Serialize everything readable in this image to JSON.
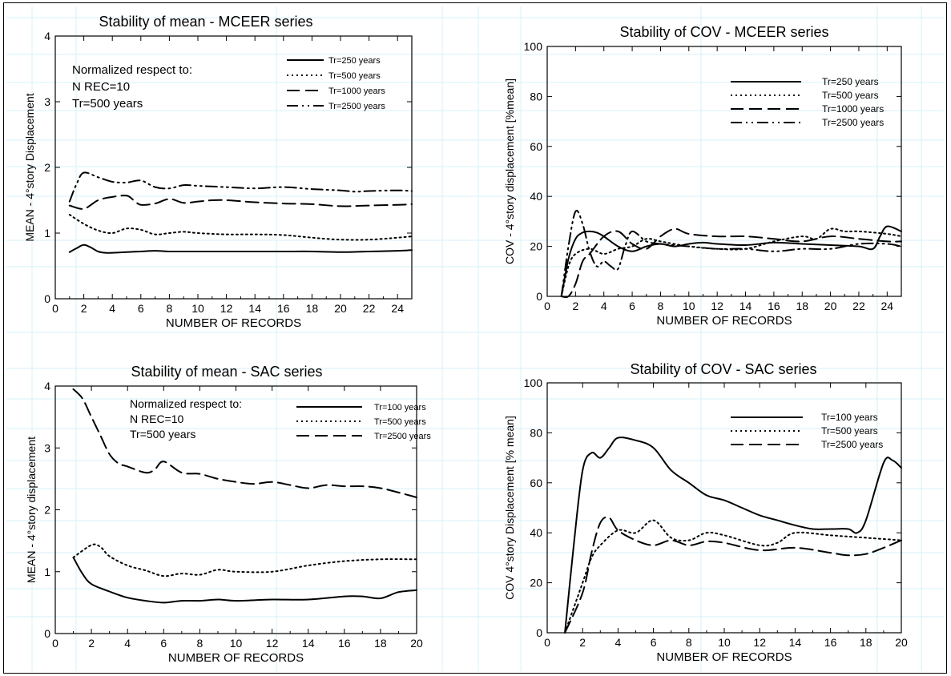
{
  "chart_data": [
    {
      "type": "line",
      "title": "Stability of mean -  MCEER series",
      "xlabel": "NUMBER OF RECORDS",
      "ylabel": "MEAN - 4°story Displacement",
      "xlim": [
        0,
        25
      ],
      "ylim": [
        0,
        4
      ],
      "xticks": [
        0,
        2,
        4,
        6,
        8,
        10,
        12,
        14,
        16,
        18,
        20,
        22,
        24
      ],
      "yticks": [
        0,
        1,
        2,
        3,
        4
      ],
      "legend_position": "top-right",
      "annotation": [
        "Normalized respect to:",
        "N REC=10",
        "Tr=500 years"
      ],
      "series": [
        {
          "name": "Tr=250 years",
          "style": "solid",
          "x": [
            1,
            1.5,
            2,
            2.5,
            3,
            3.5,
            4,
            5,
            6,
            7,
            8,
            9,
            10,
            12,
            14,
            16,
            18,
            20,
            22,
            24,
            25
          ],
          "y": [
            0.71,
            0.77,
            0.82,
            0.78,
            0.72,
            0.7,
            0.7,
            0.71,
            0.72,
            0.73,
            0.72,
            0.72,
            0.72,
            0.72,
            0.72,
            0.72,
            0.72,
            0.71,
            0.72,
            0.73,
            0.74
          ]
        },
        {
          "name": "Tr=500 years",
          "style": "dotted",
          "x": [
            1,
            2,
            3,
            4,
            5,
            6,
            7,
            8,
            9,
            10,
            12,
            14,
            16,
            18,
            20,
            22,
            24,
            25
          ],
          "y": [
            1.28,
            1.14,
            1.04,
            1.0,
            1.07,
            1.05,
            0.98,
            1.0,
            1.02,
            1.0,
            0.98,
            0.98,
            0.97,
            0.93,
            0.9,
            0.9,
            0.93,
            0.95
          ]
        },
        {
          "name": "Tr=1000 years",
          "style": "dashed",
          "x": [
            1,
            2,
            3,
            4,
            5,
            5.5,
            6,
            7,
            8,
            9,
            10,
            11,
            12,
            14,
            16,
            18,
            20,
            22,
            24,
            25
          ],
          "y": [
            1.42,
            1.37,
            1.5,
            1.55,
            1.57,
            1.5,
            1.43,
            1.45,
            1.52,
            1.46,
            1.48,
            1.5,
            1.5,
            1.47,
            1.45,
            1.44,
            1.41,
            1.42,
            1.43,
            1.44
          ]
        },
        {
          "name": "Tr=2500 years",
          "style": "dashdotdot",
          "x": [
            1,
            1.5,
            2,
            3,
            4,
            5,
            6,
            7,
            8,
            9,
            10,
            12,
            14,
            16,
            18,
            20,
            21,
            22,
            24,
            25
          ],
          "y": [
            1.48,
            1.75,
            1.92,
            1.85,
            1.78,
            1.77,
            1.8,
            1.7,
            1.68,
            1.73,
            1.72,
            1.7,
            1.68,
            1.7,
            1.67,
            1.65,
            1.63,
            1.64,
            1.65,
            1.64
          ]
        }
      ]
    },
    {
      "type": "line",
      "title": "Stability of COV - MCEER series",
      "xlabel": "NUMBER OF RECORDS",
      "ylabel": "COV  - 4°story displacement [%mean]",
      "xlim": [
        0,
        25
      ],
      "ylim": [
        0,
        100
      ],
      "xticks": [
        0,
        2,
        4,
        6,
        8,
        10,
        12,
        14,
        16,
        18,
        20,
        22,
        24
      ],
      "yticks": [
        0,
        20,
        40,
        60,
        80,
        100
      ],
      "legend_position": "top-right",
      "series": [
        {
          "name": "Tr=250 years",
          "style": "solid",
          "x": [
            1,
            1.5,
            2,
            2.5,
            3,
            3.5,
            4,
            5,
            6,
            7,
            8,
            9,
            10,
            11,
            12,
            14,
            16,
            18,
            20,
            22,
            23,
            23.5,
            24,
            25
          ],
          "y": [
            0,
            15,
            23,
            25.5,
            26,
            25.5,
            24,
            20,
            18,
            20,
            21,
            20,
            21,
            21.5,
            21,
            20.5,
            21.5,
            21,
            20.5,
            20,
            19,
            24,
            28,
            26
          ]
        },
        {
          "name": "Tr=500 years",
          "style": "dotted",
          "x": [
            1,
            1.5,
            2,
            3,
            4,
            5,
            6,
            7,
            8,
            10,
            12,
            14,
            16,
            18,
            19,
            20,
            21,
            22,
            24,
            25
          ],
          "y": [
            0,
            12,
            17,
            19,
            17,
            19,
            20,
            23,
            22,
            20,
            19,
            19,
            22,
            24,
            23,
            27,
            26,
            26,
            25,
            24
          ]
        },
        {
          "name": "Tr=1000 years",
          "style": "dashed",
          "x": [
            1,
            1.5,
            2,
            2.5,
            3,
            4,
            5,
            6,
            7,
            8,
            9,
            10,
            12,
            14,
            16,
            18,
            20,
            22,
            24,
            25
          ],
          "y": [
            0,
            0,
            5,
            14,
            17,
            24,
            26,
            21,
            19,
            24,
            27,
            25,
            24,
            24,
            23,
            22,
            24,
            23,
            22,
            22
          ]
        },
        {
          "name": "Tr=2500 years",
          "style": "dashdotdot",
          "x": [
            1,
            1.5,
            2,
            2.5,
            3,
            3.5,
            4,
            4.5,
            5,
            5.5,
            6,
            7,
            8,
            10,
            12,
            14,
            16,
            18,
            20,
            22,
            24,
            25
          ],
          "y": [
            0,
            20,
            34,
            29,
            18,
            12,
            14,
            12,
            11,
            20,
            26,
            22,
            21,
            20,
            19,
            19,
            18,
            19,
            19,
            21,
            21,
            20
          ]
        }
      ]
    },
    {
      "type": "line",
      "title": "Stability of mean - SAC series",
      "xlabel": "NUMBER OF RECORDS",
      "ylabel": "MEAN - 4°story displacement",
      "xlim": [
        0,
        20
      ],
      "ylim": [
        0,
        4
      ],
      "xticks": [
        0,
        2,
        4,
        6,
        8,
        10,
        12,
        14,
        16,
        18,
        20
      ],
      "yticks": [
        0,
        1,
        2,
        3,
        4
      ],
      "legend_position": "top-right",
      "annotation": [
        "Normalized respect to:",
        "N REC=10",
        "Tr=500 years"
      ],
      "series": [
        {
          "name": "Tr=100 years",
          "style": "solid",
          "x": [
            1,
            1.5,
            2,
            3,
            4,
            5,
            6,
            7,
            8,
            9,
            10,
            12,
            14,
            16,
            17,
            18,
            19,
            20
          ],
          "y": [
            1.23,
            0.97,
            0.8,
            0.68,
            0.58,
            0.53,
            0.5,
            0.53,
            0.53,
            0.55,
            0.53,
            0.55,
            0.55,
            0.6,
            0.6,
            0.57,
            0.67,
            0.7
          ]
        },
        {
          "name": "Tr=500 years",
          "style": "dotted",
          "x": [
            1,
            2,
            2.5,
            3,
            4,
            5,
            6,
            7,
            8,
            9,
            10,
            12,
            14,
            16,
            18,
            20
          ],
          "y": [
            1.23,
            1.43,
            1.4,
            1.25,
            1.1,
            1.02,
            0.93,
            0.97,
            0.95,
            1.03,
            1.0,
            1.0,
            1.1,
            1.17,
            1.2,
            1.2
          ]
        },
        {
          "name": "Tr=2500 years",
          "style": "dashed",
          "x": [
            1,
            1.5,
            2,
            2.5,
            3,
            3.5,
            4,
            5,
            5.5,
            6,
            7,
            8,
            9,
            10,
            11,
            12,
            13,
            14,
            15,
            16,
            17,
            18,
            19,
            20
          ],
          "y": [
            3.95,
            3.8,
            3.5,
            3.2,
            2.9,
            2.75,
            2.7,
            2.6,
            2.65,
            2.78,
            2.6,
            2.58,
            2.5,
            2.45,
            2.42,
            2.45,
            2.4,
            2.35,
            2.4,
            2.38,
            2.38,
            2.35,
            2.28,
            2.2
          ]
        }
      ]
    },
    {
      "type": "line",
      "title": "Stability of COV - SAC series",
      "xlabel": "NUMBER OF RECORDS",
      "ylabel": "COV 4°story Displacement [% mean]",
      "xlim": [
        0,
        20
      ],
      "ylim": [
        0,
        100
      ],
      "xticks": [
        0,
        2,
        4,
        6,
        8,
        10,
        12,
        14,
        16,
        18,
        20
      ],
      "yticks": [
        0,
        20,
        40,
        60,
        80,
        100
      ],
      "legend_position": "top-right",
      "series": [
        {
          "name": "Tr=100 years",
          "style": "solid",
          "x": [
            1,
            1.5,
            2,
            2.5,
            3,
            3.5,
            4,
            5,
            6,
            7,
            8,
            9,
            10,
            11,
            12,
            13,
            14,
            15,
            16,
            17,
            17.5,
            18,
            19,
            19.5,
            20
          ],
          "y": [
            0,
            35,
            65,
            72,
            70,
            74,
            78,
            77,
            74,
            65,
            60,
            55,
            53,
            50,
            47,
            45,
            43,
            41.5,
            41.5,
            41.5,
            40,
            45,
            68,
            69,
            66
          ]
        },
        {
          "name": "Tr=500 years",
          "style": "dotted",
          "x": [
            1,
            2,
            2.5,
            3,
            4,
            5,
            6,
            7,
            8,
            9,
            10,
            12,
            13,
            14,
            16,
            18,
            20
          ],
          "y": [
            0,
            20,
            30,
            35,
            41,
            40,
            45,
            38,
            37,
            40,
            39,
            35,
            36,
            40,
            39,
            38,
            37
          ]
        },
        {
          "name": "Tr=2500 years",
          "style": "dashed",
          "x": [
            1,
            2,
            2.5,
            3,
            3.5,
            4,
            5,
            6,
            7,
            8,
            9,
            10,
            12,
            14,
            16,
            17,
            18,
            19,
            20
          ],
          "y": [
            0,
            16,
            32,
            44,
            46,
            41,
            37,
            35,
            37,
            35,
            36.5,
            36,
            33,
            34,
            32,
            31,
            31.5,
            34,
            37
          ]
        }
      ]
    }
  ]
}
